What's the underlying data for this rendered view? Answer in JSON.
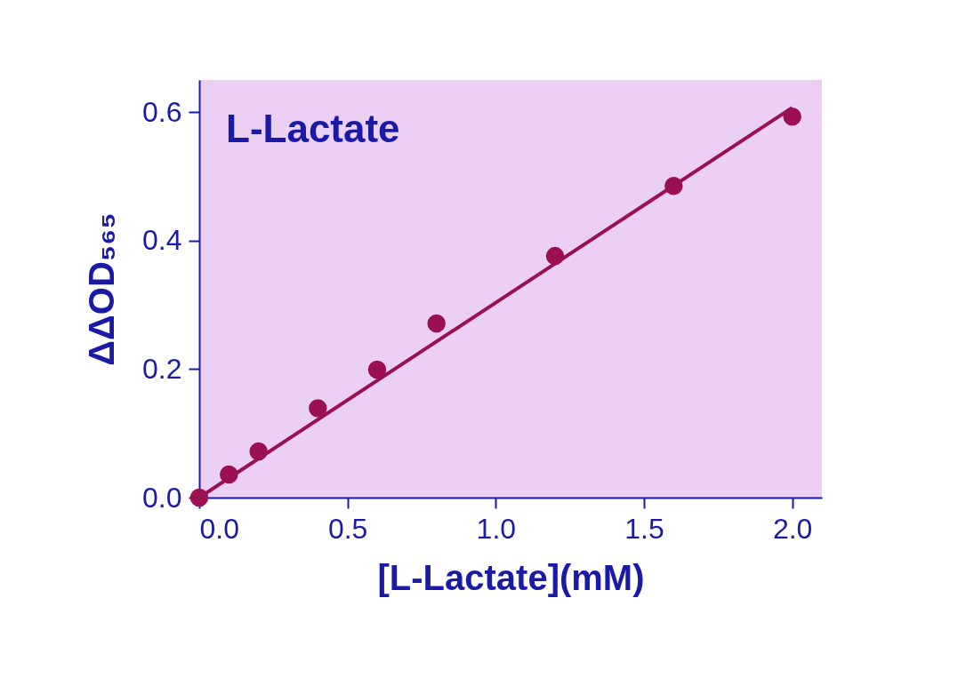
{
  "chart_data": {
    "type": "scatter",
    "xlabel": "[L-Lactate](mM)",
    "ylabel": "ΔΔOD₅₆₅",
    "annotations": [
      "L-Lactate"
    ],
    "xlim": [
      0,
      2.1
    ],
    "ylim": [
      0,
      0.65
    ],
    "xticks": [
      {
        "value": 0,
        "label": "0.0"
      },
      0.5,
      {
        "value": 1,
        "label": "1.0"
      },
      1.5,
      {
        "value": 2,
        "label": "2.0"
      }
    ],
    "yticks": [
      {
        "value": 0,
        "label": "0.0"
      },
      0.2,
      0.4,
      0.6
    ],
    "grid": false,
    "series": [
      {
        "marker": "circle",
        "color": "#9b1050",
        "x": [
          0,
          0.1,
          0.2,
          0.4,
          0.6,
          0.8,
          1.2,
          1.6,
          2.0
        ],
        "values": [
          0,
          0.036,
          0.072,
          0.139,
          0.199,
          0.271,
          0.376,
          0.485,
          0.593
        ]
      },
      {
        "type": "line",
        "color": "#9b1050",
        "line_style": "solid",
        "x": [
          0,
          2.0
        ],
        "values": [
          0,
          0.607
        ]
      }
    ]
  }
}
